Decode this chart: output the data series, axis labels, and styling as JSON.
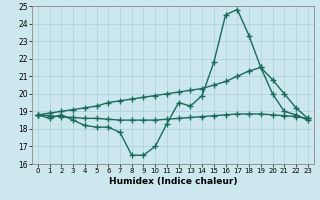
{
  "xlabel": "Humidex (Indice chaleur)",
  "hours": [
    0,
    1,
    2,
    3,
    4,
    5,
    6,
    7,
    8,
    9,
    10,
    11,
    12,
    13,
    14,
    15,
    16,
    17,
    18,
    19,
    20,
    21,
    22,
    23
  ],
  "line_main": [
    18.8,
    18.6,
    18.8,
    18.5,
    18.2,
    18.1,
    18.1,
    17.8,
    16.5,
    16.5,
    17.0,
    18.3,
    19.5,
    19.3,
    19.9,
    21.8,
    24.5,
    24.8,
    23.3,
    21.5,
    20.0,
    19.0,
    18.8,
    18.5
  ],
  "line_trend1": [
    18.8,
    18.9,
    19.0,
    19.1,
    19.2,
    19.3,
    19.5,
    19.6,
    19.7,
    19.8,
    19.9,
    20.0,
    20.1,
    20.2,
    20.3,
    20.5,
    20.7,
    21.0,
    21.3,
    21.5,
    20.8,
    20.0,
    19.2,
    18.6
  ],
  "line_trend2": [
    18.8,
    18.75,
    18.7,
    18.65,
    18.6,
    18.6,
    18.55,
    18.5,
    18.5,
    18.5,
    18.5,
    18.55,
    18.6,
    18.65,
    18.7,
    18.75,
    18.8,
    18.85,
    18.85,
    18.85,
    18.8,
    18.75,
    18.7,
    18.6
  ],
  "ylim": [
    16,
    25
  ],
  "yticks": [
    16,
    17,
    18,
    19,
    20,
    21,
    22,
    23,
    24,
    25
  ],
  "color": "#1a6b5a",
  "bg_color": "#cce8ee",
  "grid_color": "#b0d4dc",
  "line_width": 1.0,
  "marker": "+",
  "marker_size": 4
}
